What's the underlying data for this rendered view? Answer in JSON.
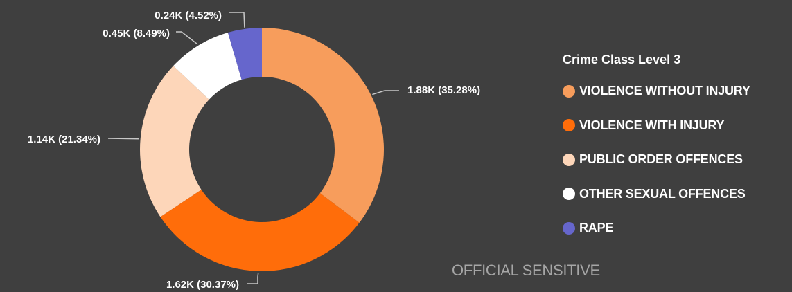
{
  "chart_data": {
    "type": "pie",
    "donut": true,
    "legend_title": "Crime Class Level 3",
    "legend_position": "right",
    "categories": [
      "VIOLENCE WITHOUT INJURY",
      "VIOLENCE WITH INJURY",
      "PUBLIC ORDER OFFENCES",
      "OTHER SEXUAL OFFENCES",
      "RAPE"
    ],
    "values": [
      1880,
      1620,
      1140,
      450,
      240
    ],
    "percentages": [
      35.28,
      30.37,
      21.34,
      8.49,
      4.52
    ],
    "labels": [
      "1.88K (35.28%)",
      "1.62K (30.37%)",
      "1.14K (21.34%)",
      "0.45K (8.49%)",
      "0.24K (4.52%)"
    ],
    "colors": [
      "#f79d5c",
      "#ff6d0a",
      "#fdd6b9",
      "#ffffff",
      "#6666cc"
    ]
  },
  "footer": {
    "classification": "OFFICIAL SENSITIVE"
  },
  "theme": {
    "background": "#3f3f3f",
    "label_color": "#ffffff",
    "leader_color": "#c8c8c8",
    "footer_color": "#a6a6a6"
  }
}
